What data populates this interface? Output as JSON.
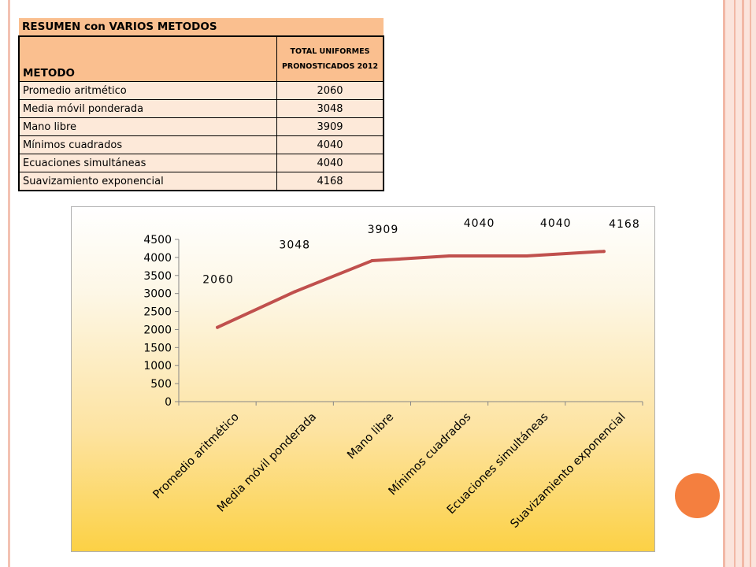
{
  "table": {
    "title": "RESUMEN con VARIOS METODOS",
    "col_method": "METODO",
    "col_total_line1": "TOTAL UNIFORMES",
    "col_total_line2": "PRONOSTICADOS 2012",
    "rows": [
      {
        "method": "Promedio aritmético",
        "total": "2060"
      },
      {
        "method": "Media móvil ponderada",
        "total": "3048"
      },
      {
        "method": "Mano libre",
        "total": "3909"
      },
      {
        "method": "Mínimos cuadrados",
        "total": "4040"
      },
      {
        "method": "Ecuaciones simultáneas",
        "total": "4040"
      },
      {
        "method": "Suavizamiento exponencial",
        "total": "4168"
      }
    ]
  },
  "chart_data": {
    "type": "line",
    "categories": [
      "Promedio aritmético",
      "Media móvil ponderada",
      "Mano libre",
      "Mínimos cuadrados",
      "Ecuaciones simultáneas",
      "Suavizamiento exponencial"
    ],
    "values": [
      2060,
      3048,
      3909,
      4040,
      4040,
      4168
    ],
    "data_labels": [
      "2060",
      "3048",
      "3909",
      "4040",
      "4040",
      "4168"
    ],
    "ylim": [
      0,
      4500
    ],
    "yticks": [
      "0",
      "500",
      "1000",
      "1500",
      "2000",
      "2500",
      "3000",
      "3500",
      "4000",
      "4500"
    ],
    "grid": false,
    "legend": "none",
    "line_color": "#c0504d"
  },
  "colors": {
    "table_header": "#fabf8f",
    "table_body": "#fde9d9",
    "accent_circle": "#f47f3f"
  }
}
